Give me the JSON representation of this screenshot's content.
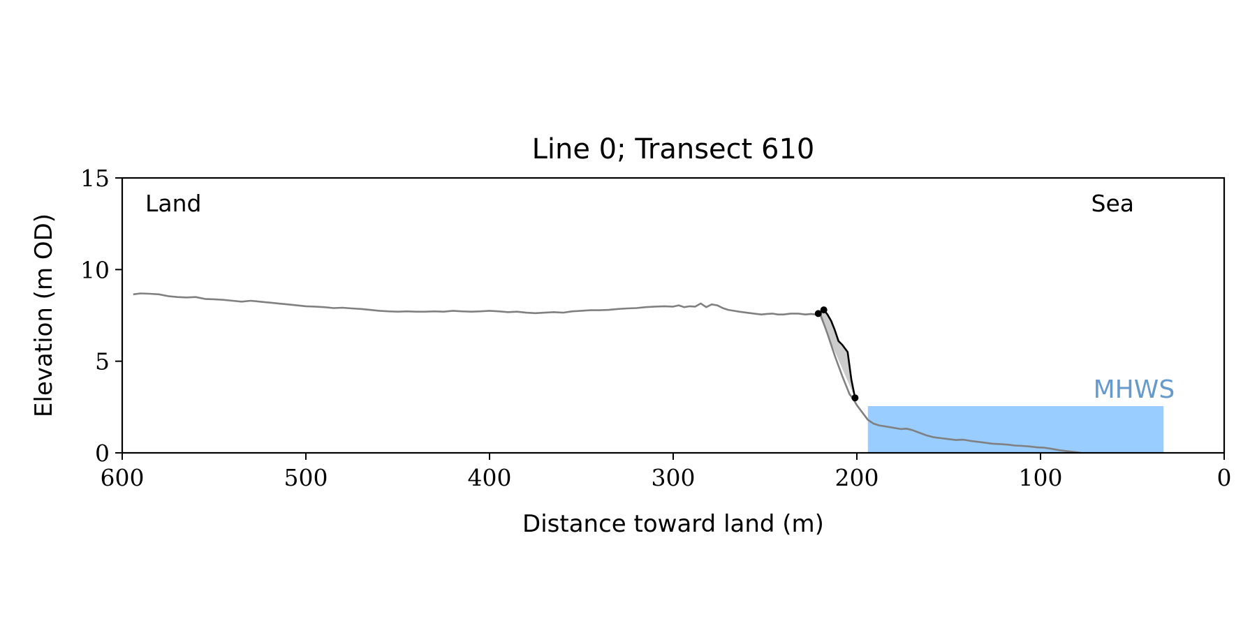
{
  "chart_data": {
    "type": "line",
    "title": "Line 0; Transect 610",
    "xlabel": "Distance toward land (m)",
    "ylabel": "Elevation (m OD)",
    "xlim": [
      600,
      0
    ],
    "ylim": [
      0,
      15
    ],
    "x_reversed": true,
    "xticks": [
      600,
      500,
      400,
      300,
      200,
      100,
      0
    ],
    "yticks": [
      0,
      5,
      10,
      15
    ],
    "grid": false,
    "annotations": {
      "land_label": "Land",
      "sea_label": "Sea",
      "mhws_label": "MHWS"
    },
    "mhws": {
      "level": 2.55,
      "x_from": 194,
      "x_to": 33
    },
    "profile": {
      "x": [
        594,
        590,
        585,
        580,
        575,
        570,
        565,
        560,
        555,
        550,
        545,
        540,
        535,
        530,
        525,
        520,
        515,
        510,
        505,
        500,
        495,
        490,
        485,
        480,
        475,
        470,
        465,
        460,
        455,
        450,
        445,
        440,
        435,
        430,
        425,
        420,
        415,
        410,
        405,
        400,
        395,
        390,
        385,
        380,
        375,
        370,
        365,
        360,
        355,
        350,
        345,
        340,
        335,
        330,
        325,
        320,
        315,
        310,
        305,
        300,
        297,
        294,
        291,
        288,
        285,
        282,
        279,
        276,
        273,
        270,
        267,
        264,
        260,
        256,
        252,
        249,
        246,
        243,
        240,
        236,
        232,
        228,
        225,
        222,
        220,
        216,
        212,
        208,
        204,
        202,
        200,
        197,
        194,
        191,
        188,
        185,
        182,
        179,
        176,
        173,
        170,
        166,
        162,
        158,
        154,
        150,
        146,
        142,
        138,
        134,
        130,
        126,
        122,
        118,
        114,
        110,
        106,
        102,
        98,
        94,
        90,
        86,
        82,
        78
      ],
      "y": [
        8.65,
        8.7,
        8.68,
        8.65,
        8.55,
        8.5,
        8.48,
        8.5,
        8.4,
        8.38,
        8.35,
        8.3,
        8.25,
        8.3,
        8.25,
        8.2,
        8.15,
        8.1,
        8.05,
        8.0,
        7.98,
        7.95,
        7.9,
        7.92,
        7.88,
        7.85,
        7.8,
        7.75,
        7.72,
        7.7,
        7.72,
        7.7,
        7.7,
        7.72,
        7.7,
        7.75,
        7.72,
        7.7,
        7.72,
        7.75,
        7.72,
        7.68,
        7.7,
        7.65,
        7.62,
        7.65,
        7.68,
        7.65,
        7.72,
        7.75,
        7.78,
        7.78,
        7.8,
        7.85,
        7.88,
        7.9,
        7.95,
        7.98,
        8.0,
        7.98,
        8.05,
        7.95,
        8.0,
        7.98,
        8.15,
        7.95,
        8.1,
        8.05,
        7.9,
        7.8,
        7.75,
        7.7,
        7.65,
        7.6,
        7.55,
        7.58,
        7.6,
        7.55,
        7.55,
        7.6,
        7.6,
        7.55,
        7.58,
        7.55,
        7.6,
        6.5,
        5.3,
        4.2,
        3.2,
        2.95,
        2.6,
        2.2,
        1.8,
        1.6,
        1.5,
        1.45,
        1.4,
        1.35,
        1.3,
        1.32,
        1.25,
        1.1,
        0.95,
        0.85,
        0.8,
        0.75,
        0.7,
        0.72,
        0.65,
        0.6,
        0.55,
        0.5,
        0.48,
        0.45,
        0.4,
        0.38,
        0.35,
        0.3,
        0.28,
        0.22,
        0.15,
        0.1,
        0.05,
        0.0
      ]
    },
    "cliff": {
      "x": [
        221,
        218,
        216,
        214,
        212,
        210,
        208,
        205,
        203,
        201
      ],
      "y": [
        7.6,
        7.8,
        7.55,
        7.2,
        6.7,
        6.1,
        5.9,
        5.5,
        4.0,
        3.0
      ]
    },
    "cliff_points": {
      "x": [
        221,
        218,
        201
      ],
      "y": [
        7.6,
        7.8,
        3.0
      ]
    },
    "colors": {
      "profile": "#808080",
      "cliff": "#000000",
      "cliff_fill": "#cccccc",
      "mhws_fill": "#99ccff",
      "mhws_label": "#6699cc",
      "axes": "#000000"
    }
  }
}
